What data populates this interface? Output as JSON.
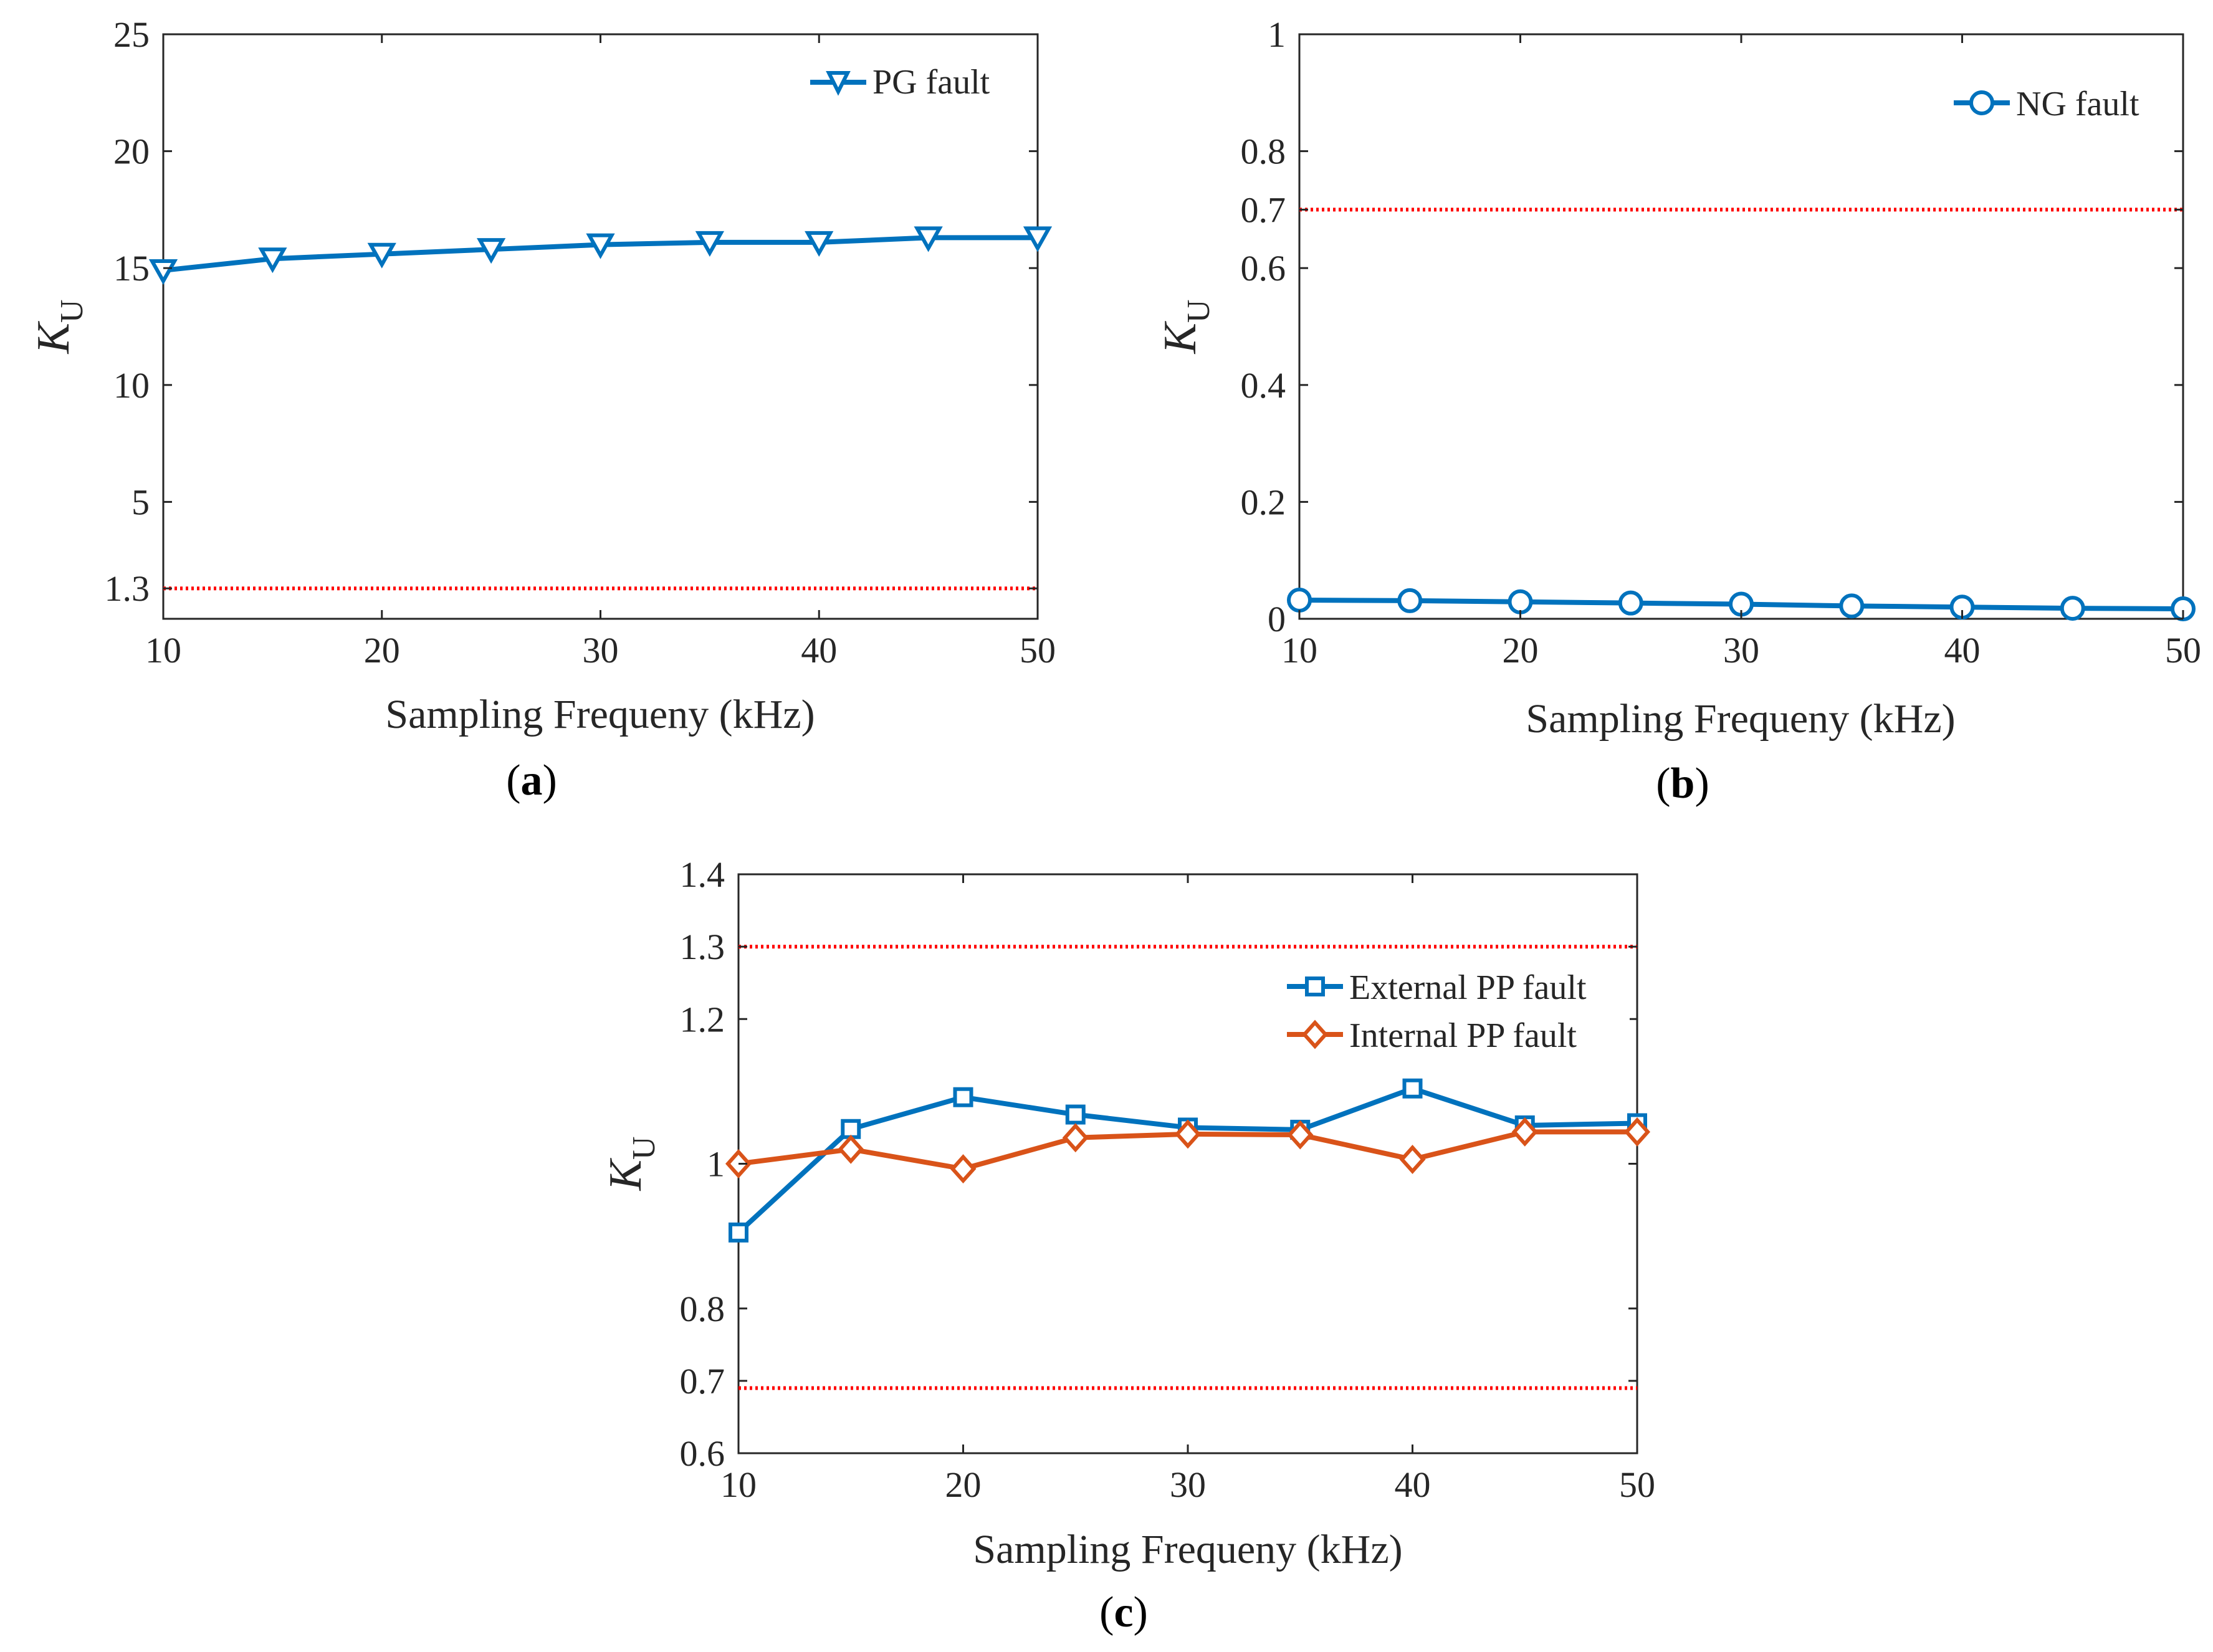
{
  "colors": {
    "blue": "#0072BD",
    "orange": "#D95319",
    "threshold_red": "#FF0000",
    "axis": "#262626"
  },
  "chart_data": [
    {
      "type": "line",
      "panel_label": "a",
      "xlabel": "Sampling Frequeny (kHz)",
      "ylabel": "K",
      "ylabel_sub": "U",
      "xlim": [
        10,
        50
      ],
      "ylim": [
        0,
        25
      ],
      "xticks": [
        10,
        20,
        30,
        40,
        50
      ],
      "yticks": [
        1.3,
        5,
        10,
        15,
        20,
        25
      ],
      "ytick_labels": [
        "1.3",
        "5",
        "10",
        "15",
        "20",
        "25"
      ],
      "x": [
        10,
        15,
        20,
        25,
        30,
        35,
        40,
        45,
        50
      ],
      "series": [
        {
          "name": "PG fault",
          "color": "#0072BD",
          "marker": "triangle-down",
          "values": [
            14.9,
            15.4,
            15.6,
            15.8,
            16.0,
            16.1,
            16.1,
            16.3,
            16.3
          ]
        }
      ],
      "thresholds": [
        1.3
      ],
      "legend": "top-right"
    },
    {
      "type": "line",
      "panel_label": "b",
      "xlabel": "Sampling Frequeny (kHz)",
      "ylabel": "K",
      "ylabel_sub": "U",
      "xlim": [
        10,
        50
      ],
      "ylim": [
        0,
        1
      ],
      "xticks": [
        10,
        20,
        30,
        40,
        50
      ],
      "yticks": [
        0,
        0.2,
        0.4,
        0.6,
        0.7,
        0.8,
        1
      ],
      "ytick_labels": [
        "0",
        "0.2",
        "0.4",
        "0.6",
        "0.7",
        "0.8",
        "1"
      ],
      "x": [
        10,
        15,
        20,
        25,
        30,
        35,
        40,
        45,
        50
      ],
      "series": [
        {
          "name": "NG fault",
          "color": "#0072BD",
          "marker": "circle",
          "values": [
            0.032,
            0.031,
            0.029,
            0.027,
            0.025,
            0.022,
            0.02,
            0.018,
            0.017
          ]
        }
      ],
      "thresholds": [
        0.7
      ],
      "legend": "top-right"
    },
    {
      "type": "line",
      "panel_label": "c",
      "xlabel": "Sampling Frequeny (kHz)",
      "ylabel": "K",
      "ylabel_sub": "U",
      "xlim": [
        10,
        50
      ],
      "ylim": [
        0.6,
        1.4
      ],
      "xticks": [
        10,
        20,
        30,
        40,
        50
      ],
      "yticks": [
        0.6,
        0.7,
        0.8,
        1,
        1.2,
        1.3,
        1.4
      ],
      "ytick_labels": [
        "0.6",
        "0.7",
        "0.8",
        "1",
        "1.2",
        "1.3",
        "1.4"
      ],
      "x": [
        10,
        15,
        20,
        25,
        30,
        35,
        40,
        45,
        50
      ],
      "series": [
        {
          "name": "External PP fault",
          "color": "#0072BD",
          "marker": "square",
          "values": [
            0.905,
            1.048,
            1.092,
            1.068,
            1.05,
            1.047,
            1.104,
            1.053,
            1.056
          ]
        },
        {
          "name": "Internal PP fault",
          "color": "#D95319",
          "marker": "diamond",
          "values": [
            1.0,
            1.02,
            0.993,
            1.036,
            1.041,
            1.04,
            1.006,
            1.044,
            1.044
          ]
        }
      ],
      "thresholds": [
        1.3,
        0.69
      ],
      "legend": "top-right"
    }
  ]
}
